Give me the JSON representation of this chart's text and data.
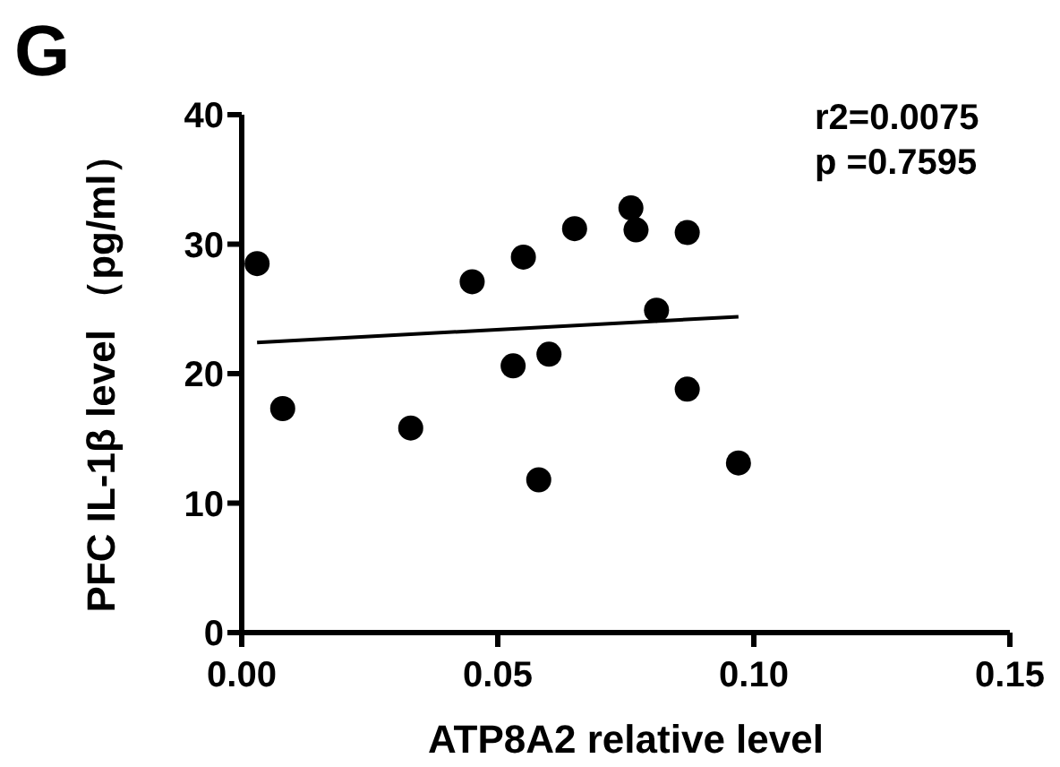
{
  "chart_data": {
    "type": "scatter",
    "title": "G",
    "xlabel": "ATP8A2 relative level",
    "ylabel": "PFC IL-1β level （pg/ml）",
    "annotations": [
      "r2=0.0075",
      "p =0.7595"
    ],
    "xlim": [
      0,
      0.15
    ],
    "xticks": [
      {
        "value": 0,
        "label": "0.00"
      },
      {
        "value": 0.05,
        "label": "0.05"
      },
      {
        "value": 0.1,
        "label": "0.10"
      },
      {
        "value": 0.15,
        "label": "0.15"
      }
    ],
    "ylim": [
      0,
      40
    ],
    "yticks": [
      0,
      10,
      20,
      30,
      40
    ],
    "grid": false,
    "marker": "circle",
    "series": [
      {
        "color": "#000000",
        "x": [
          0.003,
          0.008,
          0.033,
          0.045,
          0.053,
          0.055,
          0.058,
          0.06,
          0.065,
          0.076,
          0.077,
          0.081,
          0.087,
          0.087,
          0.097
        ],
        "values": [
          28.5,
          17.3,
          15.8,
          27.1,
          20.6,
          29.0,
          11.8,
          21.5,
          31.2,
          32.8,
          31.1,
          24.9,
          30.9,
          18.8,
          13.1
        ]
      },
      {
        "type": "line",
        "color": "#000000",
        "marker": "none",
        "line_style": "solid",
        "x": [
          0.003,
          0.097
        ],
        "values": [
          22.4,
          24.4
        ]
      }
    ]
  }
}
